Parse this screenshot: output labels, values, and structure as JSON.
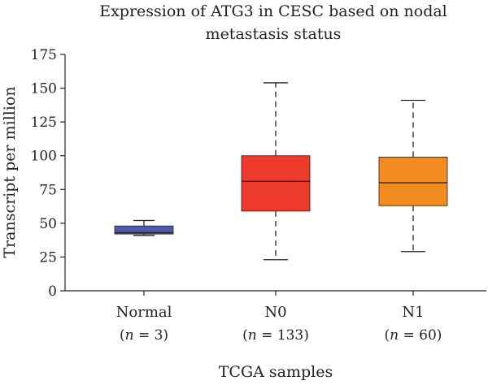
{
  "chart_data": {
    "type": "box",
    "title_lines": [
      "Expression of ATG3 in CESC based on nodal",
      "metastasis status"
    ],
    "xlabel": "TCGA samples",
    "ylabel": "Transcript per million",
    "ylim": [
      0,
      175
    ],
    "yticks": [
      0,
      25,
      50,
      75,
      100,
      125,
      150,
      175
    ],
    "categories": [
      {
        "name": "Normal",
        "n_label": "(n = 3)",
        "n_prefix": "(",
        "n_var": "n",
        "n_rest": " = 3)",
        "color": "#4a5bb0",
        "whisker_low": 41,
        "q1": 42,
        "median": 43,
        "q3": 48,
        "whisker_high": 52
      },
      {
        "name": "N0",
        "n_label": "(n = 133)",
        "n_prefix": "(",
        "n_var": "n",
        "n_rest": " = 133)",
        "color": "#ee3a2a",
        "whisker_low": 23,
        "q1": 59,
        "median": 81,
        "q3": 100,
        "whisker_high": 154
      },
      {
        "name": "N1",
        "n_label": "(n = 60)",
        "n_prefix": "(",
        "n_var": "n",
        "n_rest": " = 60)",
        "color": "#f28c20",
        "whisker_low": 29,
        "q1": 63,
        "median": 80,
        "q3": 99,
        "whisker_high": 141
      }
    ]
  }
}
